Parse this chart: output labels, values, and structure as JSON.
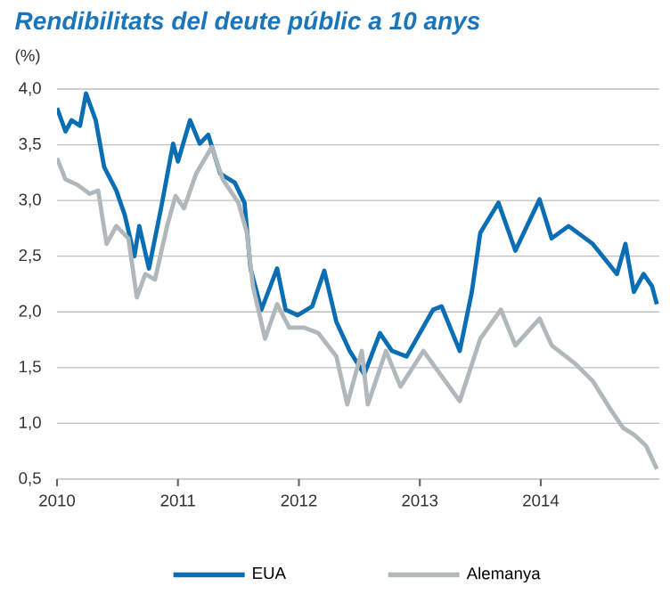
{
  "chart_data": {
    "type": "line",
    "title": "Rendibilitats del deute públic a 10 anys",
    "ylabel": "(%)",
    "xlim": [
      2010,
      2014.98
    ],
    "xticks": [
      2010,
      2011,
      2012,
      2013,
      2014
    ],
    "ylim": [
      0.5,
      4.0
    ],
    "yticks": [
      {
        "value": 0.5,
        "label": "0,5"
      },
      {
        "value": 1.0,
        "label": "1,0"
      },
      {
        "value": 1.5,
        "label": "1,5"
      },
      {
        "value": 2.0,
        "label": "2,0"
      },
      {
        "value": 2.5,
        "label": "2,5"
      },
      {
        "value": 3.0,
        "label": "3,0"
      },
      {
        "value": 3.5,
        "label": "3,5"
      },
      {
        "value": 4.0,
        "label": "4,0"
      }
    ],
    "grid": "y",
    "legend": "bottom",
    "marker": "none",
    "line_style": "solid",
    "series": [
      {
        "name": "EUA",
        "color": "#0a6eb4",
        "x": [
          2010.0,
          2010.07,
          2010.12,
          2010.19,
          2010.24,
          2010.32,
          2010.39,
          2010.49,
          2010.56,
          2010.64,
          2010.68,
          2010.76,
          2010.86,
          2010.96,
          2011.0,
          2011.1,
          2011.18,
          2011.25,
          2011.35,
          2011.47,
          2011.55,
          2011.6,
          2011.69,
          2011.82,
          2011.89,
          2011.99,
          2012.11,
          2012.21,
          2012.31,
          2012.42,
          2012.54,
          2012.67,
          2012.77,
          2012.89,
          2013.11,
          2013.18,
          2013.33,
          2013.43,
          2013.5,
          2013.65,
          2013.79,
          2013.99,
          2014.09,
          2014.23,
          2014.43,
          2014.63,
          2014.7,
          2014.77,
          2014.85,
          2014.92,
          2014.96
        ],
        "values": [
          3.83,
          3.62,
          3.72,
          3.67,
          3.96,
          3.72,
          3.3,
          3.09,
          2.87,
          2.5,
          2.77,
          2.39,
          2.93,
          3.51,
          3.35,
          3.72,
          3.51,
          3.59,
          3.24,
          3.16,
          2.98,
          2.39,
          2.02,
          2.39,
          2.02,
          1.97,
          2.05,
          2.37,
          1.91,
          1.65,
          1.44,
          1.81,
          1.65,
          1.6,
          2.02,
          2.05,
          1.65,
          2.18,
          2.71,
          2.98,
          2.55,
          3.01,
          2.66,
          2.77,
          2.61,
          2.34,
          2.61,
          2.18,
          2.34,
          2.23,
          2.07
        ]
      },
      {
        "name": "Alemanya",
        "color": "#b0b8bc",
        "x": [
          2010.0,
          2010.07,
          2010.17,
          2010.27,
          2010.34,
          2010.41,
          2010.49,
          2010.59,
          2010.66,
          2010.73,
          2010.81,
          2010.91,
          2010.98,
          2011.05,
          2011.15,
          2011.28,
          2011.37,
          2011.5,
          2011.57,
          2011.62,
          2011.72,
          2011.82,
          2011.92,
          2012.04,
          2012.16,
          2012.31,
          2012.4,
          2012.52,
          2012.57,
          2012.72,
          2012.84,
          2013.03,
          2013.33,
          2013.5,
          2013.67,
          2013.79,
          2013.99,
          2014.09,
          2014.28,
          2014.43,
          2014.58,
          2014.68,
          2014.77,
          2014.87,
          2014.96
        ],
        "values": [
          3.38,
          3.19,
          3.14,
          3.06,
          3.09,
          2.61,
          2.77,
          2.66,
          2.13,
          2.34,
          2.29,
          2.77,
          3.04,
          2.93,
          3.24,
          3.48,
          3.19,
          2.98,
          2.71,
          2.23,
          1.76,
          2.07,
          1.86,
          1.86,
          1.81,
          1.6,
          1.17,
          1.65,
          1.17,
          1.65,
          1.33,
          1.65,
          1.2,
          1.76,
          2.02,
          1.7,
          1.94,
          1.7,
          1.54,
          1.38,
          1.12,
          0.96,
          0.9,
          0.8,
          0.59
        ]
      }
    ]
  }
}
